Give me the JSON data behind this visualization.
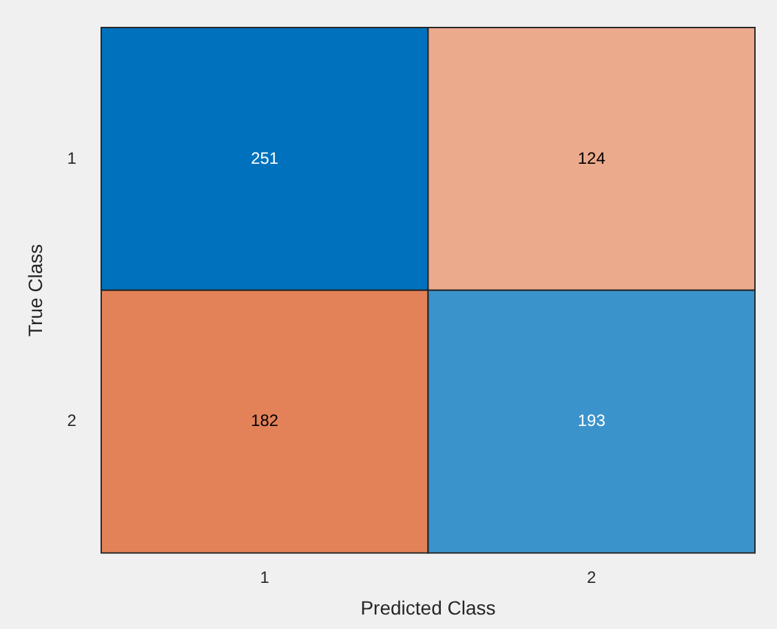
{
  "chart_data": {
    "type": "heatmap",
    "xlabel": "Predicted Class",
    "ylabel": "True Class",
    "categories": [
      "1",
      "2"
    ],
    "y_categories": [
      "1",
      "2"
    ],
    "cells": [
      [
        251,
        124
      ],
      [
        182,
        193
      ]
    ],
    "data_labels": true
  }
}
